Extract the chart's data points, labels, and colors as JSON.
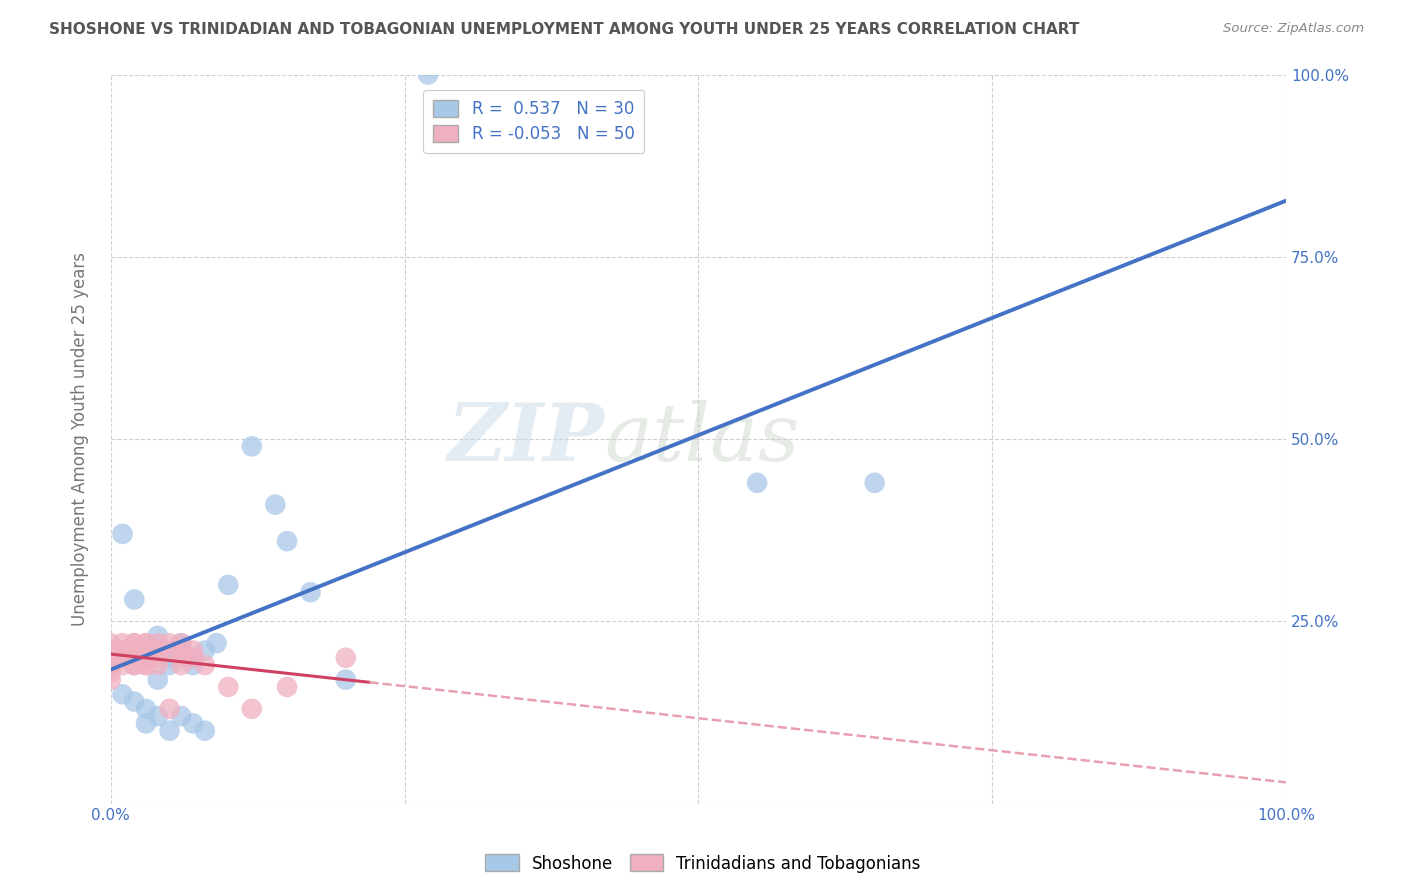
{
  "title": "SHOSHONE VS TRINIDADIAN AND TOBAGONIAN UNEMPLOYMENT AMONG YOUTH UNDER 25 YEARS CORRELATION CHART",
  "source": "Source: ZipAtlas.com",
  "ylabel": "Unemployment Among Youth under 25 years",
  "xlim": [
    0,
    1.0
  ],
  "ylim": [
    0,
    1.0
  ],
  "xticks": [
    0.0,
    0.25,
    0.5,
    0.75,
    1.0
  ],
  "yticks": [
    0.0,
    0.25,
    0.5,
    0.75,
    1.0
  ],
  "xticklabels": [
    "0.0%",
    "",
    "",
    "",
    "100.0%"
  ],
  "right_yticklabels": [
    "",
    "25.0%",
    "50.0%",
    "75.0%",
    "100.0%"
  ],
  "legend_labels": [
    "Shoshone",
    "Trinidadians and Tobagonians"
  ],
  "legend_R": [
    "0.537",
    "-0.053"
  ],
  "legend_N": [
    "30",
    "50"
  ],
  "watermark_zip": "ZIP",
  "watermark_atlas": "atlas",
  "shoshone_color": "#a8c8e8",
  "trinidadian_color": "#f0b0c0",
  "shoshone_line_color": "#4472c4",
  "trinidadian_line_solid_color": "#d04060",
  "trinidadian_line_dash_color": "#e8a0b0",
  "background_color": "#ffffff",
  "shoshone_x": [
    0.27,
    0.01,
    0.02,
    0.03,
    0.04,
    0.04,
    0.05,
    0.05,
    0.06,
    0.07,
    0.07,
    0.08,
    0.09,
    0.1,
    0.12,
    0.14,
    0.15,
    0.17,
    0.2,
    0.01,
    0.02,
    0.03,
    0.03,
    0.04,
    0.05,
    0.06,
    0.07,
    0.08,
    0.55,
    0.65
  ],
  "shoshone_y": [
    1.0,
    0.37,
    0.28,
    0.21,
    0.23,
    0.17,
    0.2,
    0.19,
    0.22,
    0.2,
    0.19,
    0.21,
    0.22,
    0.3,
    0.49,
    0.41,
    0.36,
    0.29,
    0.17,
    0.15,
    0.14,
    0.13,
    0.11,
    0.12,
    0.1,
    0.12,
    0.11,
    0.1,
    0.44,
    0.44
  ],
  "trinidadian_x": [
    0.0,
    0.0,
    0.0,
    0.0,
    0.0,
    0.0,
    0.0,
    0.0,
    0.0,
    0.01,
    0.01,
    0.01,
    0.01,
    0.01,
    0.02,
    0.02,
    0.02,
    0.02,
    0.02,
    0.02,
    0.02,
    0.02,
    0.03,
    0.03,
    0.03,
    0.03,
    0.03,
    0.03,
    0.03,
    0.03,
    0.03,
    0.03,
    0.04,
    0.04,
    0.04,
    0.04,
    0.05,
    0.05,
    0.05,
    0.06,
    0.06,
    0.06,
    0.06,
    0.07,
    0.07,
    0.08,
    0.1,
    0.12,
    0.15,
    0.2
  ],
  "trinidadian_y": [
    0.2,
    0.19,
    0.2,
    0.21,
    0.22,
    0.18,
    0.17,
    0.19,
    0.2,
    0.22,
    0.21,
    0.19,
    0.2,
    0.21,
    0.22,
    0.21,
    0.2,
    0.19,
    0.22,
    0.21,
    0.2,
    0.19,
    0.21,
    0.2,
    0.22,
    0.21,
    0.2,
    0.19,
    0.22,
    0.21,
    0.2,
    0.19,
    0.22,
    0.21,
    0.2,
    0.19,
    0.22,
    0.21,
    0.13,
    0.21,
    0.2,
    0.19,
    0.22,
    0.21,
    0.2,
    0.19,
    0.16,
    0.13,
    0.16,
    0.2
  ]
}
